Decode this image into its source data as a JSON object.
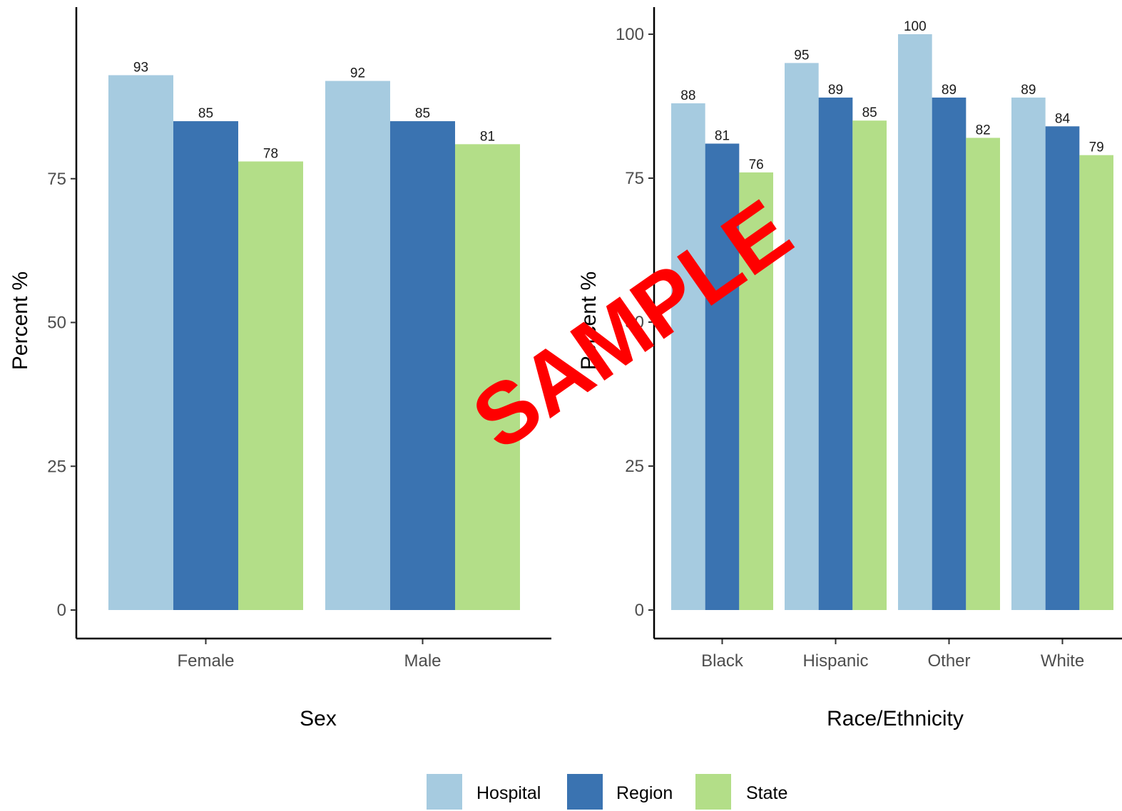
{
  "chart_data": [
    {
      "type": "bar",
      "xlabel": "Sex",
      "ylabel": "Percent %",
      "ylim": [
        0,
        100
      ],
      "yticks": [
        0,
        25,
        50,
        75
      ],
      "categories": [
        "Female",
        "Male"
      ],
      "series": [
        {
          "name": "Hospital",
          "values": [
            93,
            92
          ]
        },
        {
          "name": "Region",
          "values": [
            85,
            85
          ]
        },
        {
          "name": "State",
          "values": [
            78,
            81
          ]
        }
      ],
      "grid": false
    },
    {
      "type": "bar",
      "xlabel": "Race/Ethnicity",
      "ylabel": "Percent %",
      "ylim": [
        0,
        100
      ],
      "yticks": [
        0,
        25,
        50,
        75,
        100
      ],
      "categories": [
        "Black",
        "Hispanic",
        "Other",
        "White"
      ],
      "series": [
        {
          "name": "Hospital",
          "values": [
            88,
            95,
            100,
            89
          ]
        },
        {
          "name": "Region",
          "values": [
            81,
            89,
            89,
            84
          ]
        },
        {
          "name": "State",
          "values": [
            76,
            85,
            82,
            79
          ]
        }
      ],
      "grid": false
    }
  ],
  "legend": {
    "placement": "bottom",
    "items": [
      {
        "label": "Hospital",
        "color": "#a6cbe0"
      },
      {
        "label": "Region",
        "color": "#3a73b1"
      },
      {
        "label": "State",
        "color": "#b3de88"
      }
    ]
  },
  "colors": {
    "Hospital": "#a6cbe0",
    "Region": "#3a73b1",
    "State": "#b3de88"
  },
  "watermark": {
    "text": "SAMPLE",
    "color": "#ff0000"
  }
}
